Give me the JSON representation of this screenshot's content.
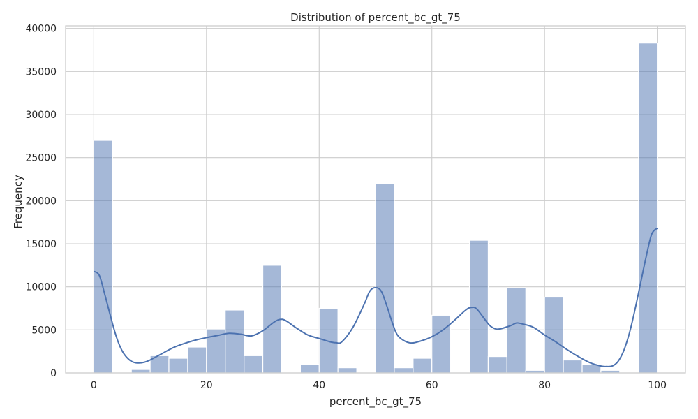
{
  "chart_data": {
    "type": "bar",
    "title": "Distribution of percent_bc_gt_75",
    "xlabel": "percent_bc_gt_75",
    "ylabel": "Frequency",
    "xlim": [
      -5,
      105
    ],
    "ylim": [
      0,
      40300
    ],
    "xticks": [
      0,
      20,
      40,
      60,
      80,
      100
    ],
    "yticks": [
      0,
      5000,
      10000,
      15000,
      20000,
      25000,
      30000,
      35000,
      40000
    ],
    "grid": true,
    "bar_color": "#4c72b0",
    "bar_opacity": 0.5,
    "kde_color": "#4c72b0",
    "grid_color": "#cccccc",
    "bins": [
      {
        "x0": 0.0,
        "x1": 3.33,
        "count": 27000
      },
      {
        "x0": 3.33,
        "x1": 6.67,
        "count": 0
      },
      {
        "x0": 6.67,
        "x1": 10.0,
        "count": 400
      },
      {
        "x0": 10.0,
        "x1": 13.33,
        "count": 2000
      },
      {
        "x0": 13.33,
        "x1": 16.67,
        "count": 1700
      },
      {
        "x0": 16.67,
        "x1": 20.0,
        "count": 3000
      },
      {
        "x0": 20.0,
        "x1": 23.33,
        "count": 5100
      },
      {
        "x0": 23.33,
        "x1": 26.67,
        "count": 7300
      },
      {
        "x0": 26.67,
        "x1": 30.0,
        "count": 2000
      },
      {
        "x0": 30.0,
        "x1": 33.33,
        "count": 12500
      },
      {
        "x0": 33.33,
        "x1": 36.67,
        "count": 0
      },
      {
        "x0": 36.67,
        "x1": 40.0,
        "count": 1000
      },
      {
        "x0": 40.0,
        "x1": 43.33,
        "count": 7500
      },
      {
        "x0": 43.33,
        "x1": 46.67,
        "count": 600
      },
      {
        "x0": 46.67,
        "x1": 50.0,
        "count": 0
      },
      {
        "x0": 50.0,
        "x1": 53.33,
        "count": 22000
      },
      {
        "x0": 53.33,
        "x1": 56.67,
        "count": 600
      },
      {
        "x0": 56.67,
        "x1": 60.0,
        "count": 1700
      },
      {
        "x0": 60.0,
        "x1": 63.33,
        "count": 6700
      },
      {
        "x0": 63.33,
        "x1": 66.67,
        "count": 0
      },
      {
        "x0": 66.67,
        "x1": 70.0,
        "count": 15400
      },
      {
        "x0": 70.0,
        "x1": 73.33,
        "count": 1900
      },
      {
        "x0": 73.33,
        "x1": 76.67,
        "count": 9900
      },
      {
        "x0": 76.67,
        "x1": 80.0,
        "count": 300
      },
      {
        "x0": 80.0,
        "x1": 83.33,
        "count": 8800
      },
      {
        "x0": 83.33,
        "x1": 86.67,
        "count": 1500
      },
      {
        "x0": 86.67,
        "x1": 90.0,
        "count": 1000
      },
      {
        "x0": 90.0,
        "x1": 93.33,
        "count": 300
      },
      {
        "x0": 93.33,
        "x1": 96.67,
        "count": 0
      },
      {
        "x0": 96.67,
        "x1": 100.0,
        "count": 38300
      }
    ],
    "kde": {
      "x": [
        0,
        1,
        2,
        3,
        4,
        5,
        6,
        7,
        8,
        9,
        10,
        12,
        14,
        16,
        18,
        20,
        22,
        24,
        26,
        28,
        30,
        32,
        33,
        34,
        36,
        38,
        40,
        42,
        43,
        44,
        46,
        48,
        49,
        50,
        51,
        52,
        53,
        54,
        56,
        58,
        60,
        62,
        64,
        66,
        67,
        68,
        70,
        71,
        72,
        74,
        75,
        76,
        78,
        80,
        82,
        84,
        86,
        88,
        90,
        91,
        92,
        93,
        94,
        95,
        96,
        97,
        98,
        99,
        100
      ],
      "y": [
        11800,
        11300,
        9000,
        6500,
        4200,
        2600,
        1700,
        1250,
        1150,
        1250,
        1500,
        2200,
        2900,
        3400,
        3800,
        4100,
        4350,
        4600,
        4500,
        4300,
        4900,
        5900,
        6200,
        6100,
        5200,
        4400,
        4000,
        3600,
        3500,
        3600,
        5300,
        8000,
        9500,
        9900,
        9500,
        7800,
        5800,
        4300,
        3500,
        3700,
        4200,
        5000,
        6100,
        7300,
        7600,
        7400,
        5700,
        5200,
        5100,
        5500,
        5800,
        5700,
        5300,
        4400,
        3600,
        2700,
        1900,
        1200,
        800,
        750,
        800,
        1300,
        2500,
        4500,
        7200,
        10300,
        13400,
        16100,
        16800
      ]
    }
  }
}
